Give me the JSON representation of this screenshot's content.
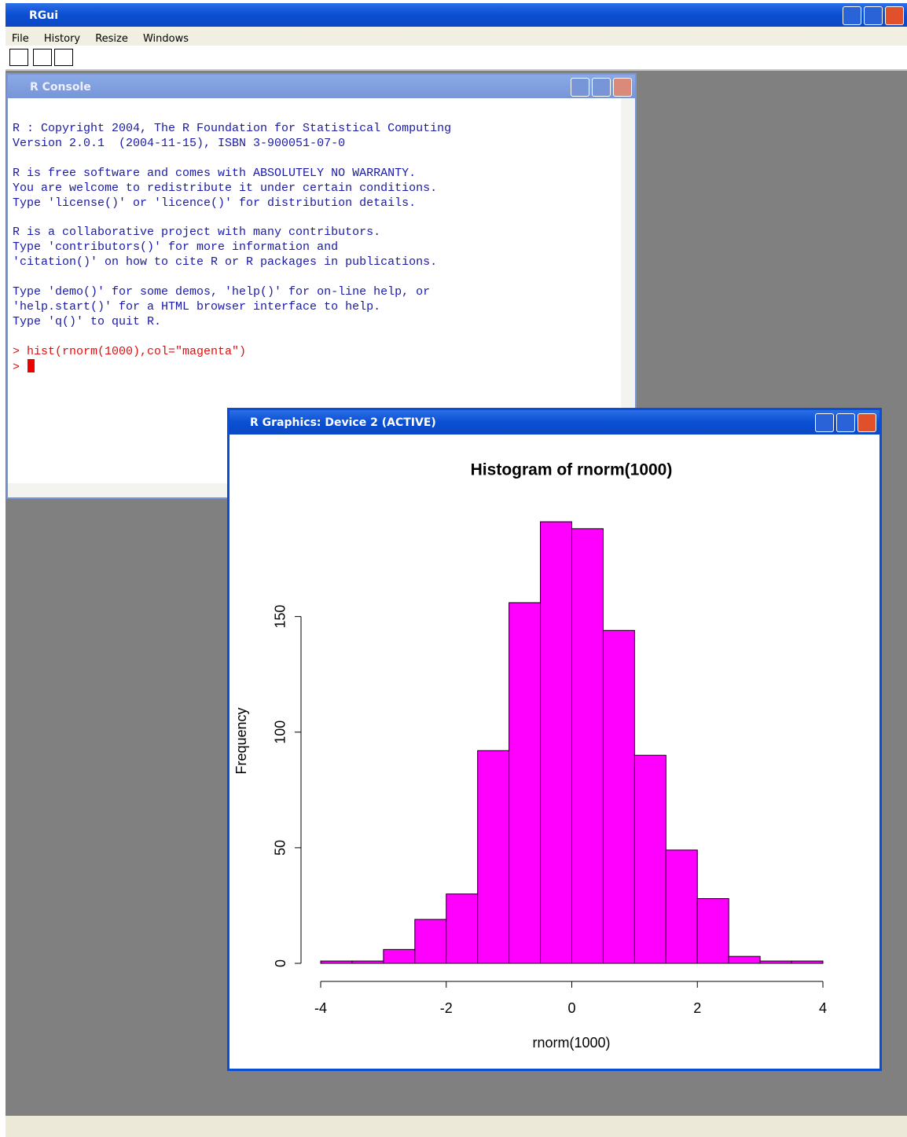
{
  "app": {
    "title": "RGui",
    "menu": [
      "File",
      "History",
      "Resize",
      "Windows"
    ]
  },
  "console": {
    "title": "R Console",
    "blocks": [
      [
        "R : Copyright 2004, The R Foundation for Statistical Computing",
        "Version 2.0.1  (2004-11-15), ISBN 3-900051-07-0"
      ],
      [
        "R is free software and comes with ABSOLUTELY NO WARRANTY.",
        "You are welcome to redistribute it under certain conditions.",
        "Type 'license()' or 'licence()' for distribution details."
      ],
      [
        "R is a collaborative project with many contributors.",
        "Type 'contributors()' for more information and",
        "'citation()' on how to cite R or R packages in publications."
      ],
      [
        "Type 'demo()' for some demos, 'help()' for on-line help, or",
        "'help.start()' for a HTML browser interface to help.",
        "Type 'q()' to quit R."
      ]
    ],
    "input": [
      "> hist(rnorm(1000),col=\"magenta\")",
      ">"
    ]
  },
  "graphics": {
    "title": "R Graphics: Device 2 (ACTIVE)"
  },
  "chart_data": {
    "type": "histogram",
    "title": "Histogram of rnorm(1000)",
    "x_label": "rnorm(1000)",
    "y_label": "Frequency",
    "color": "#ff00ff",
    "bins": [
      -4,
      -3.5,
      -3,
      -2.5,
      -2,
      -1.5,
      -1,
      -0.5,
      0,
      0.5,
      1,
      1.5,
      2,
      2.5,
      3,
      3.5,
      4
    ],
    "values": [
      1,
      1,
      6,
      19,
      30,
      92,
      156,
      191,
      188,
      144,
      90,
      49,
      28,
      3,
      1,
      1
    ],
    "xlim": [
      -4,
      4
    ],
    "xticks": [
      -4,
      -2,
      0,
      2,
      4
    ],
    "ylim": [
      0,
      191
    ],
    "yticks": [
      0,
      50,
      100,
      150
    ]
  }
}
